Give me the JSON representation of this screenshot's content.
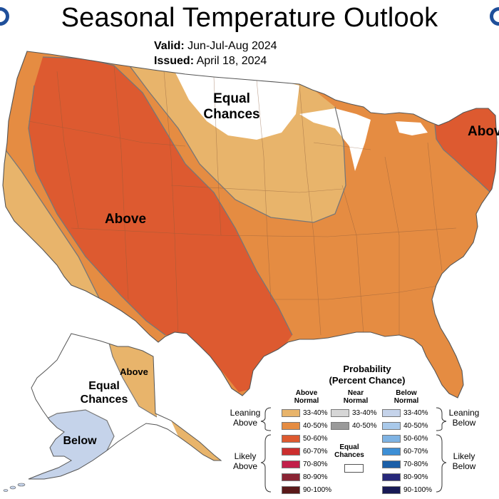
{
  "header": {
    "title": "Seasonal Temperature Outlook",
    "valid_label": "Valid:",
    "valid_value": "Jun-Jul-Aug 2024",
    "issued_label": "Issued:",
    "issued_value": "April 18, 2024"
  },
  "map_labels": {
    "equal_chances_conus_1": "Equal",
    "equal_chances_conus_2": "Chances",
    "above_west": "Above",
    "above_northeast": "Above",
    "above_alaska": "Above",
    "equal_chances_alaska_1": "Equal",
    "equal_chances_alaska_2": "Chances",
    "below_alaska": "Below"
  },
  "legend": {
    "title_1": "Probability",
    "title_2": "(Percent Chance)",
    "above_header_1": "Above",
    "above_header_2": "Normal",
    "near_header_1": "Near",
    "near_header_2": "Normal",
    "below_header_1": "Below",
    "below_header_2": "Normal",
    "leaning_above_1": "Leaning",
    "leaning_above_2": "Above",
    "likely_above_1": "Likely",
    "likely_above_2": "Above",
    "leaning_below_1": "Leaning",
    "leaning_below_2": "Below",
    "likely_below_1": "Likely",
    "likely_below_2": "Below",
    "equal_chances_1": "Equal",
    "equal_chances_2": "Chances",
    "above_rows": [
      {
        "label": "33-40%",
        "color": "#e8b46b"
      },
      {
        "label": "40-50%",
        "color": "#e58c42"
      },
      {
        "label": "50-60%",
        "color": "#dd5a30"
      },
      {
        "label": "60-70%",
        "color": "#cc2e2e"
      },
      {
        "label": "70-80%",
        "color": "#c2204a"
      },
      {
        "label": "80-90%",
        "color": "#8a2434"
      },
      {
        "label": "90-100%",
        "color": "#5a1a1a"
      }
    ],
    "near_rows": [
      {
        "label": "33-40%",
        "color": "#d6d6d6"
      },
      {
        "label": "40-50%",
        "color": "#9a9a9a"
      }
    ],
    "below_rows": [
      {
        "label": "33-40%",
        "color": "#c5d3ea"
      },
      {
        "label": "40-50%",
        "color": "#a9c9ea"
      },
      {
        "label": "50-60%",
        "color": "#7fb3e3"
      },
      {
        "label": "60-70%",
        "color": "#3d8fd6"
      },
      {
        "label": "70-80%",
        "color": "#1b5fa8"
      },
      {
        "label": "80-90%",
        "color": "#27287a"
      },
      {
        "label": "90-100%",
        "color": "#181a55"
      }
    ]
  },
  "colors": {
    "above_33_40": "#e8b46b",
    "above_40_50": "#e58c42",
    "above_50_60": "#dd5a30",
    "below_33_40": "#c5d3ea",
    "equal_chances": "#ffffff"
  }
}
